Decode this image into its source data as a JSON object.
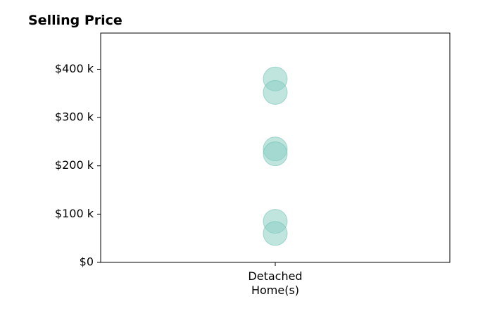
{
  "chart_data": {
    "type": "scatter",
    "title": "Selling Price",
    "xlabel": "",
    "ylabel": "",
    "categories": [
      "Detached\nHome(s)"
    ],
    "series": [
      {
        "category_index": 0,
        "values": [
          380000,
          352000,
          235000,
          225000,
          85000,
          60000
        ]
      }
    ],
    "y_ticks": [
      0,
      100000,
      200000,
      300000,
      400000
    ],
    "y_tick_labels": [
      "$0",
      "$100 k",
      "$200 k",
      "$300 k",
      "$400 k"
    ],
    "ylim": [
      0,
      475000
    ],
    "grid": false,
    "marker_color": "#8ccfc4",
    "marker_edge_color": "#6fc1b4",
    "marker_opacity": 0.55
  }
}
